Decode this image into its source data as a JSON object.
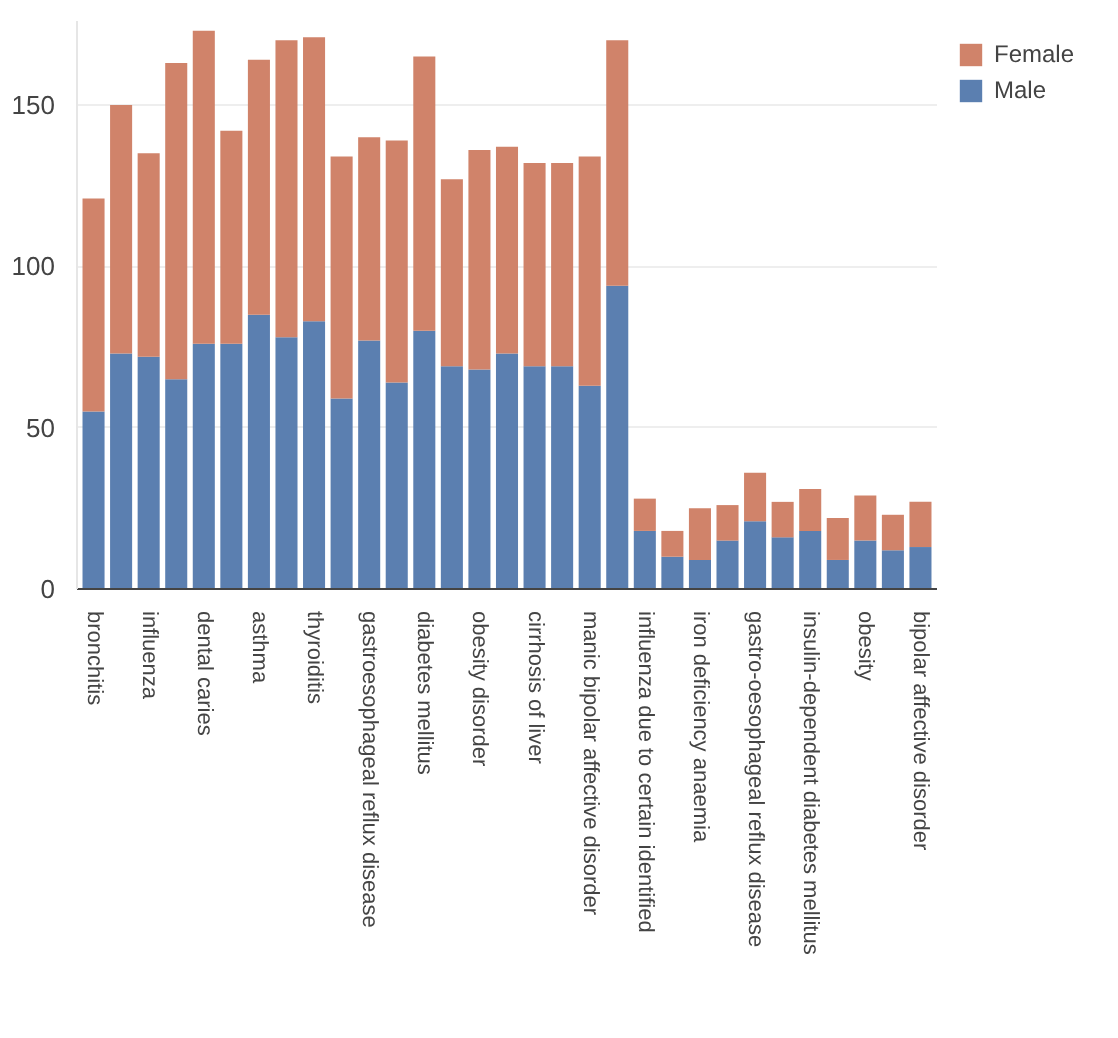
{
  "chart_data": {
    "type": "bar",
    "stacked": true,
    "categories": [
      "bronchitis",
      null,
      "influenza",
      null,
      "dental caries",
      null,
      "asthma",
      null,
      "thyroiditis",
      null,
      "gastroesophageal reflux disease",
      null,
      "diabetes mellitus",
      null,
      "obesity disorder",
      null,
      "cirrhosis of liver",
      null,
      "manic bipolar affective disorder",
      null,
      "influenza due to certain identified",
      null,
      "iron deficiency anaemia",
      null,
      "gastro-oesophageal reflux disease",
      null,
      "insulin-dependent diabetes mellitus",
      null,
      "obesity",
      null,
      "bipolar affective disorder"
    ],
    "series": [
      {
        "name": "Male",
        "color": "#5b7fb0",
        "values": [
          55,
          73,
          72,
          65,
          76,
          76,
          85,
          78,
          83,
          59,
          77,
          64,
          80,
          69,
          68,
          73,
          69,
          69,
          63,
          94,
          18,
          10,
          9,
          15,
          21,
          16,
          18,
          9,
          15,
          12,
          13
        ]
      },
      {
        "name": "Female",
        "color": "#d0836a",
        "values": [
          66,
          77,
          63,
          98,
          97,
          66,
          79,
          92,
          88,
          75,
          63,
          75,
          85,
          58,
          68,
          64,
          63,
          63,
          71,
          76,
          10,
          8,
          16,
          11,
          15,
          11,
          13,
          13,
          14,
          11,
          14
        ]
      }
    ],
    "ylim": [
      0,
      176
    ],
    "yticks": [
      0,
      50,
      100,
      150
    ],
    "grid": "y",
    "legend": "top right"
  }
}
